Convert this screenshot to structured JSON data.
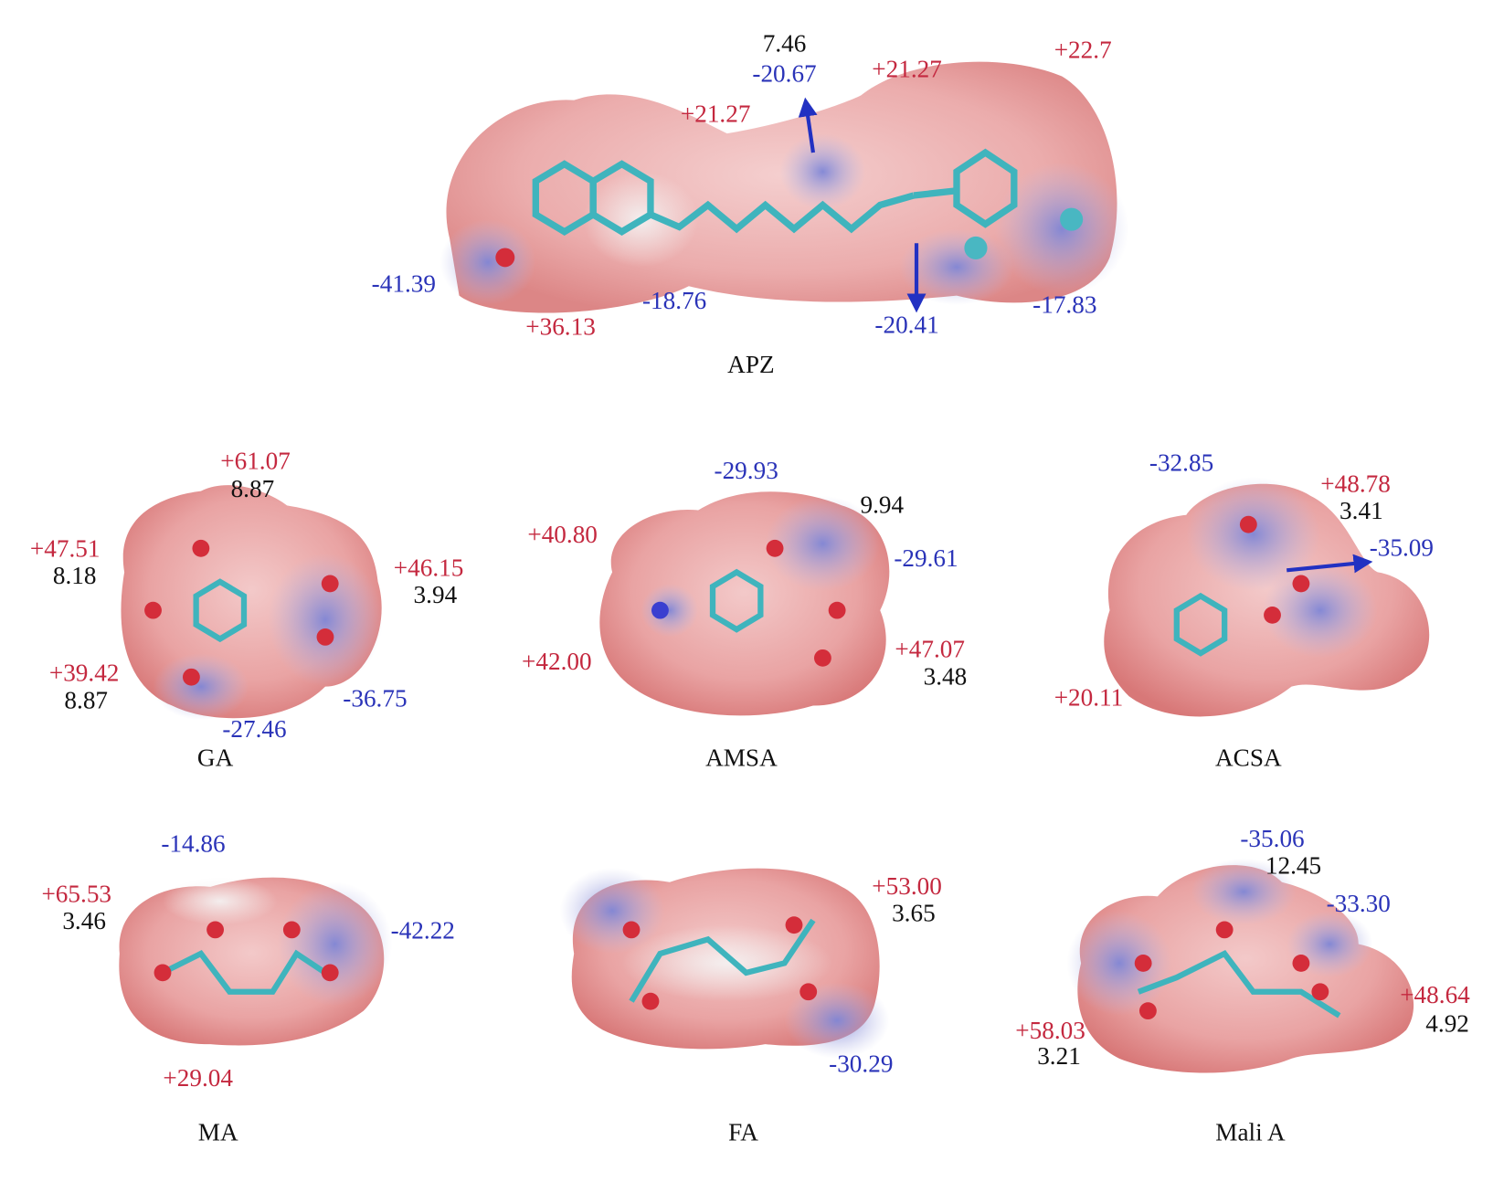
{
  "figure": {
    "molecules": [
      {
        "name": "APZ",
        "labels": [
          "7.46",
          "-20.67",
          "+21.27",
          "+22.7",
          "+21.27",
          "-41.39",
          "+36.13",
          "-18.76",
          "-20.41",
          "-17.83"
        ]
      },
      {
        "name": "GA",
        "labels": [
          "+61.07",
          "8.87",
          "+47.51",
          "8.18",
          "+46.15",
          "3.94",
          "+39.42",
          "8.87",
          "-36.75",
          "-27.46"
        ]
      },
      {
        "name": "AMSA",
        "labels": [
          "-29.93",
          "9.94",
          "+40.80",
          "-29.61",
          "+42.00",
          "+47.07",
          "3.48"
        ]
      },
      {
        "name": "ACSA",
        "labels": [
          "-32.85",
          "+48.78",
          "3.41",
          "-35.09",
          "+20.11"
        ]
      },
      {
        "name": "MA",
        "labels": [
          "-14.86",
          "+65.53",
          "3.46",
          "-42.22",
          "+29.04"
        ]
      },
      {
        "name": "FA",
        "labels": [
          "+53.00",
          "3.65",
          "-30.29"
        ]
      },
      {
        "name": "Mali A",
        "labels": [
          "-35.06",
          "12.45",
          "-33.30",
          "+58.03",
          "3.21",
          "+48.64",
          "4.92"
        ]
      }
    ]
  }
}
